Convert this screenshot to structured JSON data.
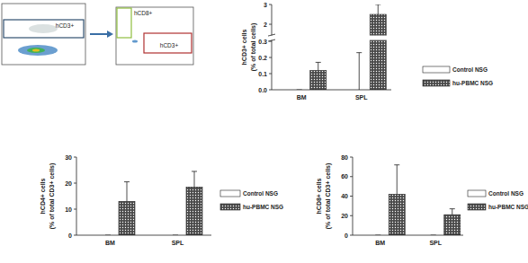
{
  "flow_panels": [
    {
      "gates": [
        {
          "label": "hCD3+",
          "color": "#2f4f6f"
        }
      ]
    },
    {
      "gates": [
        {
          "label": "hCD8+",
          "color": "#8fbf3f"
        },
        {
          "label": "hCD3+",
          "color": "#b03030"
        }
      ]
    }
  ],
  "chart_data": [
    {
      "type": "bar",
      "ylabel": [
        "hCD3+ cells",
        "(% of total cells)"
      ],
      "categories": [
        "BM",
        "SPL"
      ],
      "series": [
        {
          "name": "Control NSG",
          "color": "#ffffff",
          "values": [
            0,
            0
          ],
          "errors": [
            0,
            0.23
          ]
        },
        {
          "name": "hu-PBMC NSG",
          "color": "#4a4a4a",
          "values": [
            0.12,
            2.5
          ],
          "errors": [
            0.05,
            0.5
          ]
        }
      ],
      "ylim": [
        0,
        3
      ],
      "y_break": [
        0.3,
        1.5
      ],
      "yticks": [
        {
          "value": 0,
          "label": "0.0"
        },
        0.1,
        0.2,
        0.3,
        2,
        3
      ],
      "legend": "right"
    },
    {
      "type": "bar",
      "ylabel": [
        "hCD4+ cells",
        "(% of total CD3+ cells)"
      ],
      "categories": [
        "BM",
        "SPL"
      ],
      "series": [
        {
          "name": "Control NSG",
          "color": "#ffffff",
          "values": [
            0,
            0
          ],
          "errors": [
            0,
            0
          ]
        },
        {
          "name": "hu-PBMC NSG",
          "color": "#4a4a4a",
          "values": [
            13,
            18.5
          ],
          "errors": [
            7.5,
            6
          ]
        }
      ],
      "ylim": [
        0,
        30
      ],
      "yticks": [
        0,
        10,
        20,
        30
      ],
      "legend": "right"
    },
    {
      "type": "bar",
      "ylabel": [
        "hCD8+ cells",
        "(% of total CD3+ cells)"
      ],
      "categories": [
        "BM",
        "SPL"
      ],
      "series": [
        {
          "name": "Control NSG",
          "color": "#ffffff",
          "values": [
            0,
            0
          ],
          "errors": [
            0,
            0
          ]
        },
        {
          "name": "hu-PBMC NSG",
          "color": "#4a4a4a",
          "values": [
            42,
            21
          ],
          "errors": [
            30,
            6
          ]
        }
      ],
      "ylim": [
        0,
        80
      ],
      "yticks": [
        0,
        20,
        40,
        60,
        80
      ],
      "legend": "right"
    }
  ]
}
